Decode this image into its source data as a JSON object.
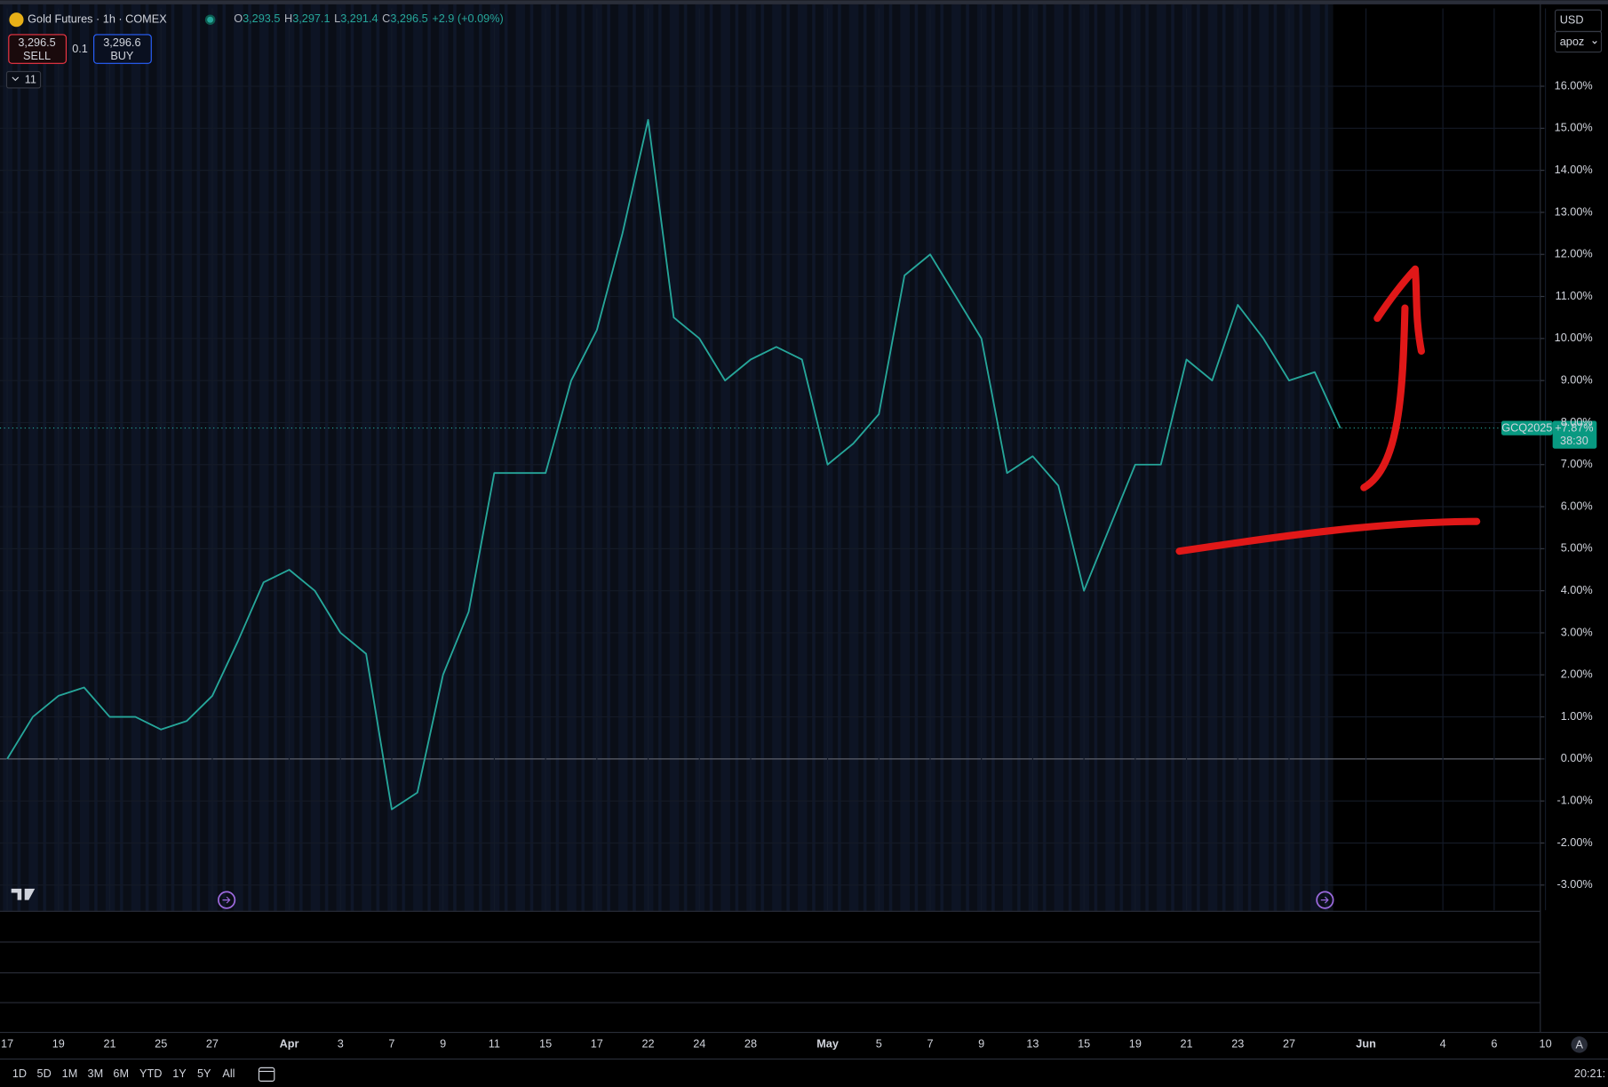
{
  "header": {
    "title": "Gold Futures · 1h · COMEX",
    "ohlc": [
      {
        "label": "O",
        "value": "3,293.5"
      },
      {
        "label": "H",
        "value": "3,297.1"
      },
      {
        "label": "L",
        "value": "3,291.4"
      },
      {
        "label": "C",
        "value": "3,296.5"
      }
    ],
    "change": "+2.9 (+0.09%)",
    "sell": {
      "price": "3,296.5",
      "label": "SELL"
    },
    "spread": "0.1",
    "buy": {
      "price": "3,296.6",
      "label": "BUY"
    },
    "indicators": "11",
    "currency": "USD",
    "unit": "apoz"
  },
  "price_label": {
    "symbol": "GCQ2025",
    "change": "+7.87%",
    "countdown": "38:30"
  },
  "toolbar": {
    "ranges": [
      "1D",
      "5D",
      "1M",
      "3M",
      "6M",
      "YTD",
      "1Y",
      "5Y",
      "All"
    ],
    "clock": "20:21:",
    "auto": "A"
  },
  "chart_data": {
    "type": "line",
    "categories": [
      "17",
      null,
      "19",
      null,
      "21",
      null,
      "25",
      null,
      "27",
      null,
      null,
      "Apr",
      null,
      "3",
      null,
      "7",
      null,
      "9",
      null,
      "11",
      null,
      "15",
      null,
      "17",
      null,
      "22",
      null,
      "24",
      null,
      "28",
      null,
      null,
      "May",
      null,
      "5",
      null,
      "7",
      null,
      "9",
      null,
      "13",
      null,
      "15",
      null,
      "19",
      null,
      "21",
      null,
      "23",
      null,
      "27",
      null,
      null,
      "Jun",
      null,
      null,
      "4",
      null,
      "6",
      null,
      "10"
    ],
    "series": [
      {
        "name": "GCQ2025",
        "color": "#26a69a",
        "values": [
          0.0,
          1.0,
          1.5,
          1.7,
          1.0,
          1.0,
          0.7,
          0.9,
          1.5,
          2.8,
          4.2,
          4.5,
          4.0,
          3.0,
          2.5,
          -1.2,
          -0.8,
          2.0,
          3.5,
          6.8,
          6.8,
          6.8,
          9.0,
          10.2,
          12.5,
          15.2,
          10.5,
          10.0,
          9.0,
          9.5,
          9.8,
          9.5,
          7.0,
          7.5,
          8.2,
          11.5,
          12.0,
          11.0,
          10.0,
          6.8,
          7.2,
          6.5,
          4.0,
          5.5,
          7.0,
          7.0,
          9.5,
          9.0,
          10.8,
          10.0,
          9.0,
          9.2,
          7.87,
          null,
          null,
          null,
          null,
          null,
          null,
          null,
          null
        ]
      }
    ],
    "ylim": [
      -3.6,
      17.85
    ],
    "yticks": [
      {
        "value": -3,
        "label": "-3.00%"
      },
      {
        "value": -2,
        "label": "-2.00%"
      },
      {
        "value": -1,
        "label": "-1.00%"
      },
      {
        "value": 0,
        "label": "0.00%"
      },
      {
        "value": 1,
        "label": "1.00%"
      },
      {
        "value": 2,
        "label": "2.00%"
      },
      {
        "value": 3,
        "label": "3.00%"
      },
      {
        "value": 4,
        "label": "4.00%"
      },
      {
        "value": 5,
        "label": "5.00%"
      },
      {
        "value": 6,
        "label": "6.00%"
      },
      {
        "value": 7,
        "label": "7.00%"
      },
      {
        "value": 8,
        "label": "8.00%"
      },
      {
        "value": 9,
        "label": "9.00%"
      },
      {
        "value": 10,
        "label": "10.00%"
      },
      {
        "value": 11,
        "label": "11.00%"
      },
      {
        "value": 12,
        "label": "12.00%"
      },
      {
        "value": 13,
        "label": "13.00%"
      },
      {
        "value": 14,
        "label": "14.00%"
      },
      {
        "value": 15,
        "label": "15.00%"
      },
      {
        "value": 16,
        "label": "16.00%"
      }
    ],
    "grid": true
  }
}
